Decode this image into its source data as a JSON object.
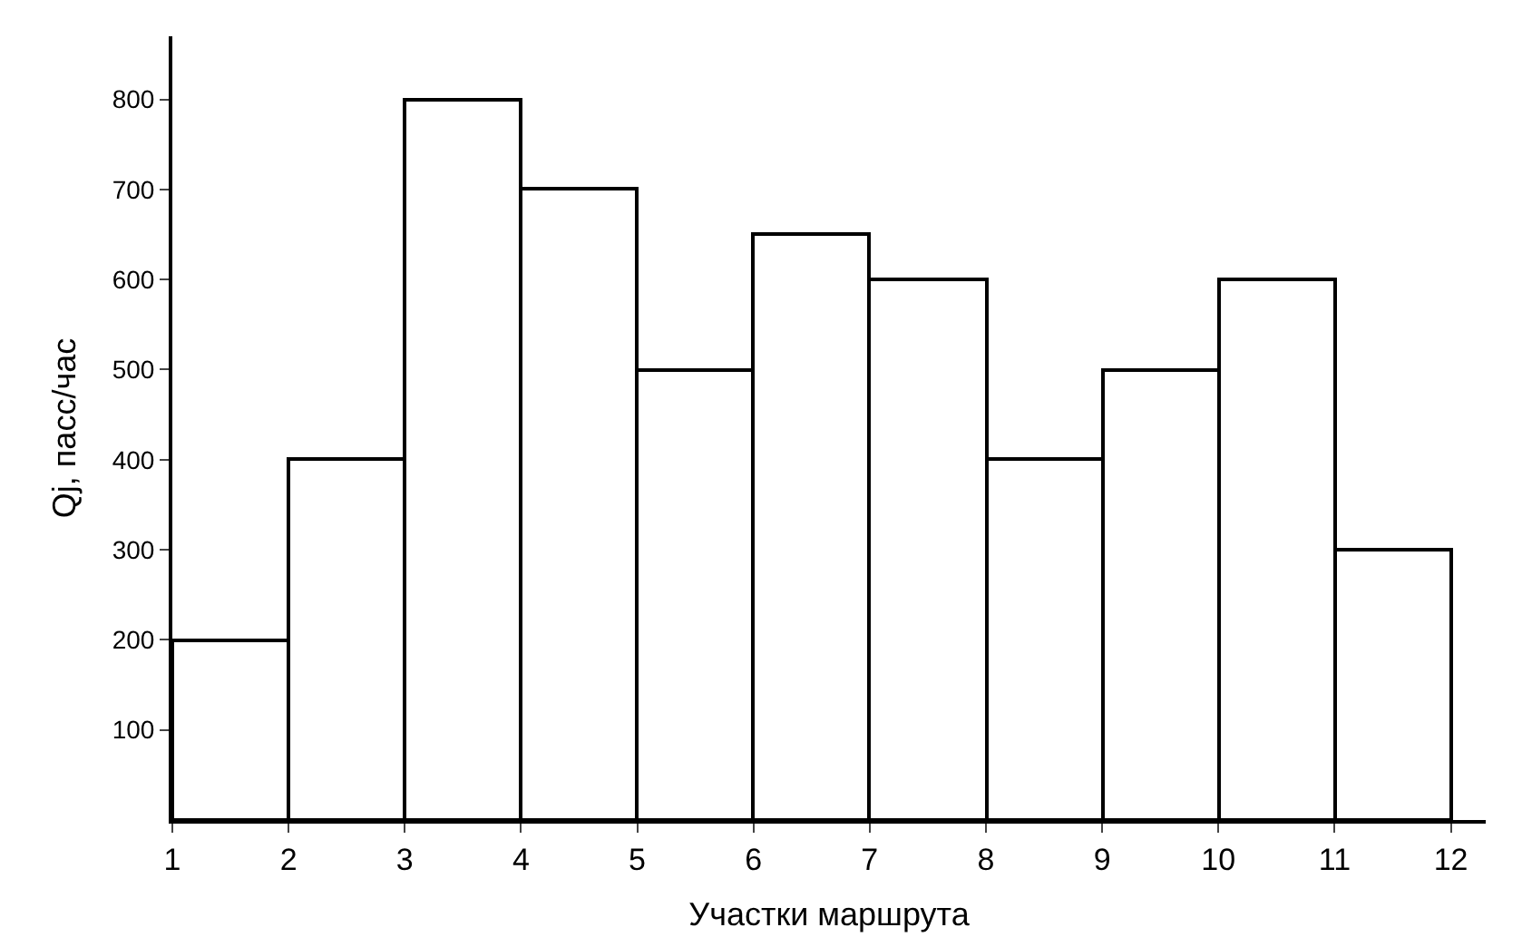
{
  "chart_data": {
    "type": "histogram",
    "xlabel": "Участки маршрута",
    "ylabel": "Qj, пасс/час",
    "bins": [
      1,
      2,
      3,
      4,
      5,
      6,
      7,
      8,
      9,
      10,
      11,
      12
    ],
    "values": [
      200,
      400,
      800,
      700,
      500,
      650,
      600,
      400,
      500,
      600,
      300
    ],
    "color": "#ffffff",
    "xlim": [
      1,
      12.3
    ],
    "xticks": [
      1,
      2,
      3,
      4,
      5,
      6,
      7,
      8,
      9,
      10,
      11,
      12
    ],
    "ylim": [
      0,
      870
    ],
    "yticks": [
      100,
      200,
      300,
      400,
      500,
      600,
      700,
      800
    ]
  }
}
